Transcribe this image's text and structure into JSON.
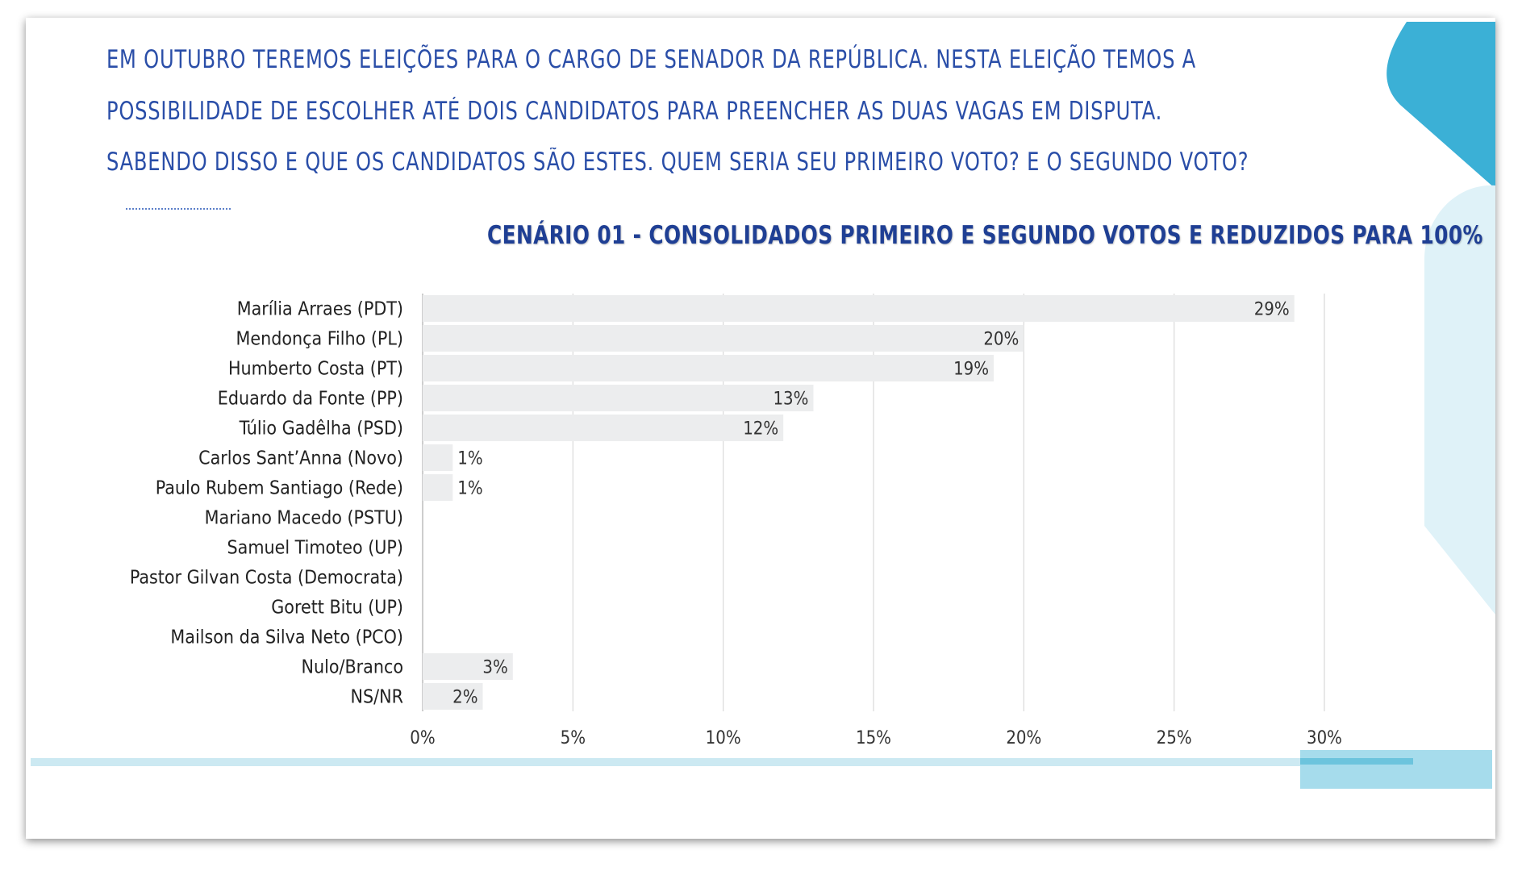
{
  "question": {
    "lines": [
      "EM OUTUBRO TEREMOS ELEIÇÕES PARA O CARGO DE SENADOR DA REPÚBLICA. NESTA ELEIÇÃO TEMOS A",
      "POSSIBILIDADE DE ESCOLHER ATÉ DOIS CANDIDATOS PARA PREENCHER AS DUAS VAGAS EM DISPUTA.",
      "SABENDO DISSO E QUE OS CANDIDATOS SÃO ESTES. QUEM SERIA SEU PRIMEIRO VOTO? E O SEGUNDO VOTO?"
    ]
  },
  "colors": {
    "question_text": "#2a4ea8",
    "title_text": "#1f3f94",
    "bar_fill": "#ecedee",
    "grid": "#d9d9d9",
    "accent_blue": "#3bb0d6",
    "accent_light": "#dff2f8"
  },
  "chart_data": {
    "type": "bar",
    "orientation": "horizontal",
    "title": "CENÁRIO 01 - CONSOLIDADOS PRIMEIRO E SEGUNDO VOTOS E REDUZIDOS PARA 100%",
    "categories": [
      "Marília Arraes (PDT)",
      "Mendonça Filho (PL)",
      "Humberto Costa (PT)",
      "Eduardo da Fonte (PP)",
      "Túlio Gadêlha (PSD)",
      "Carlos Sant’Anna (Novo)",
      "Paulo Rubem Santiago (Rede)",
      "Mariano Macedo (PSTU)",
      "Samuel Timoteo (UP)",
      "Pastor Gilvan Costa (Democrata)",
      "Gorett Bitu (UP)",
      "Mailson da Silva Neto (PCO)",
      "Nulo/Branco",
      "NS/NR"
    ],
    "values": [
      29,
      20,
      19,
      13,
      12,
      1,
      1,
      0,
      0,
      0,
      0,
      0,
      3,
      2
    ],
    "data_labels": [
      "29%",
      "20%",
      "19%",
      "13%",
      "12%",
      "1%",
      "1%",
      "",
      "",
      "",
      "",
      "",
      "3%",
      "2%"
    ],
    "xlim": [
      0,
      30
    ],
    "xticks": [
      0,
      5,
      10,
      15,
      20,
      25,
      30
    ],
    "xtick_labels": [
      "0%",
      "5%",
      "10%",
      "15%",
      "20%",
      "25%",
      "30%"
    ],
    "grid": true,
    "legend": "none"
  }
}
